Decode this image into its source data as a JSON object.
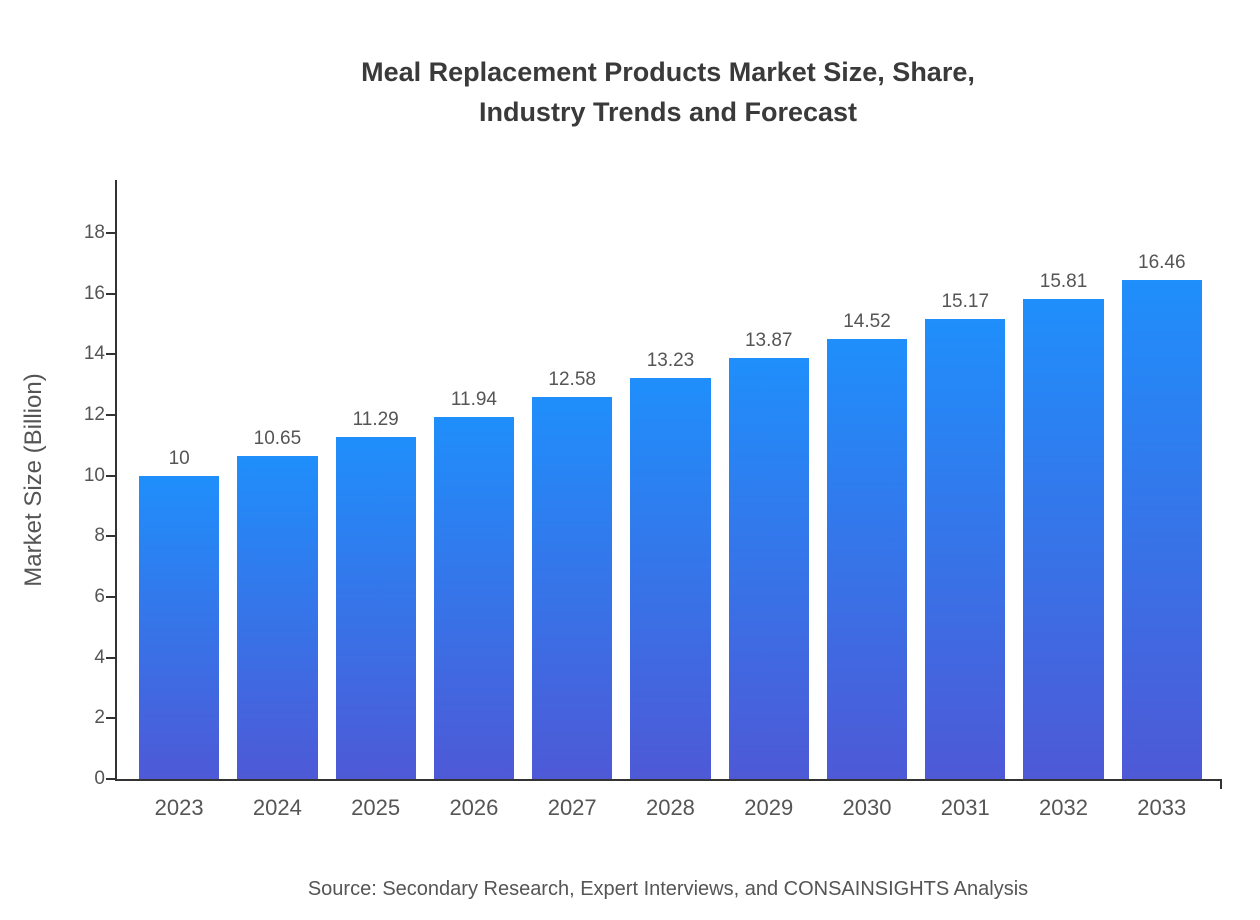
{
  "chart_data": {
    "type": "bar",
    "title": "Meal Replacement Products Market Size, Share,\nIndustry Trends and Forecast",
    "categories": [
      "2023",
      "2024",
      "2025",
      "2026",
      "2027",
      "2028",
      "2029",
      "2030",
      "2031",
      "2032",
      "2033"
    ],
    "values": [
      10,
      10.65,
      11.29,
      11.94,
      12.58,
      13.23,
      13.87,
      14.52,
      15.17,
      15.81,
      16.46
    ],
    "value_labels": [
      "10",
      "10.65",
      "11.29",
      "11.94",
      "12.58",
      "13.23",
      "13.87",
      "14.52",
      "15.17",
      "15.81",
      "16.46"
    ],
    "xlabel": "",
    "ylabel": "Market Size (Billion)",
    "ylim": [
      0,
      18
    ],
    "yticks": [
      0,
      2,
      4,
      6,
      8,
      10,
      12,
      14,
      16,
      18
    ],
    "grid": false,
    "legend": "none",
    "source": "Source: Secondary Research, Expert Interviews, and CONSAINSIGHTS Analysis",
    "colors": {
      "bar_gradient_top": "#1f8ffb",
      "bar_gradient_bottom": "#4e59d6",
      "axis": "#333333",
      "text": "#555555",
      "title": "#3a3a3a"
    }
  }
}
